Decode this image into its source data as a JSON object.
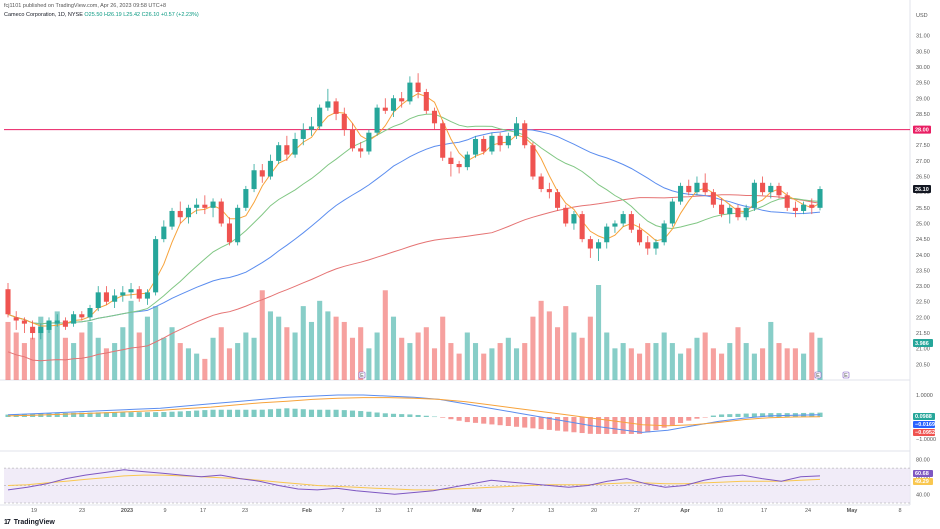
{
  "header": {
    "published": "fcj1101 published on TradingView.com, Apr 26, 2023 09:58 UTC+8"
  },
  "legend": {
    "symbol": "Cameco Corporation, 1D, NYSE",
    "ohlc": "O25.50 H26.19 L25.42 C26.10 +0.57 (+2.23%)"
  },
  "footer": {
    "brand": "TradingView",
    "logo": "17"
  },
  "colors": {
    "up": "#26a69a",
    "down": "#ef5350",
    "ma_short": "#f7a33b",
    "ma_mid": "#81c784",
    "ma_blue": "#5b8def",
    "ma_red": "#e57373",
    "hline": "#e91e63",
    "rsi_band": "#ede7f6"
  },
  "chart_data": {
    "type": "candlestick",
    "currency": "USD",
    "last_close": "26.10",
    "hline_value": 28.0,
    "hline_label": "28.00",
    "ylim": [
      20.0,
      31.5
    ],
    "yticks": [
      "31.00",
      "30.50",
      "30.00",
      "29.50",
      "29.00",
      "28.50",
      "28.00",
      "27.50",
      "27.00",
      "26.50",
      "26.00",
      "25.50",
      "25.00",
      "24.50",
      "24.00",
      "23.50",
      "23.00",
      "22.50",
      "22.00",
      "21.50",
      "21.00",
      "20.50"
    ],
    "volume_label": "3.986",
    "xticks": [
      "19",
      "23",
      "2023",
      "9",
      "17",
      "23",
      "Feb",
      "7",
      "13",
      "17",
      "Mar",
      "7",
      "13",
      "20",
      "27",
      "Apr",
      "10",
      "17",
      "24",
      "May",
      "8"
    ],
    "events": [
      "E",
      "E",
      "E"
    ],
    "candles": [
      {
        "o": 22.9,
        "h": 23.1,
        "l": 22.0,
        "c": 22.1
      },
      {
        "o": 22.0,
        "h": 22.2,
        "l": 21.6,
        "c": 21.9
      },
      {
        "o": 21.9,
        "h": 22.0,
        "l": 21.5,
        "c": 21.8
      },
      {
        "o": 21.7,
        "h": 21.9,
        "l": 21.3,
        "c": 21.5
      },
      {
        "o": 21.5,
        "h": 21.8,
        "l": 21.3,
        "c": 21.7
      },
      {
        "o": 21.6,
        "h": 22.0,
        "l": 21.5,
        "c": 21.9
      },
      {
        "o": 21.8,
        "h": 22.1,
        "l": 21.7,
        "c": 21.9
      },
      {
        "o": 21.9,
        "h": 22.0,
        "l": 21.6,
        "c": 21.7
      },
      {
        "o": 21.8,
        "h": 22.2,
        "l": 21.7,
        "c": 22.1
      },
      {
        "o": 22.1,
        "h": 22.2,
        "l": 21.9,
        "c": 22.0
      },
      {
        "o": 22.0,
        "h": 22.4,
        "l": 21.9,
        "c": 22.3
      },
      {
        "o": 22.3,
        "h": 23.0,
        "l": 22.2,
        "c": 22.8
      },
      {
        "o": 22.8,
        "h": 23.0,
        "l": 22.4,
        "c": 22.5
      },
      {
        "o": 22.5,
        "h": 22.9,
        "l": 22.3,
        "c": 22.7
      },
      {
        "o": 22.7,
        "h": 23.0,
        "l": 22.5,
        "c": 22.8
      },
      {
        "o": 22.8,
        "h": 23.1,
        "l": 22.6,
        "c": 22.9
      },
      {
        "o": 22.9,
        "h": 23.0,
        "l": 22.5,
        "c": 22.6
      },
      {
        "o": 22.6,
        "h": 22.9,
        "l": 22.4,
        "c": 22.8
      },
      {
        "o": 22.8,
        "h": 24.6,
        "l": 22.7,
        "c": 24.5
      },
      {
        "o": 24.5,
        "h": 25.1,
        "l": 24.4,
        "c": 24.9
      },
      {
        "o": 24.9,
        "h": 25.5,
        "l": 24.8,
        "c": 25.4
      },
      {
        "o": 25.4,
        "h": 25.7,
        "l": 25.0,
        "c": 25.2
      },
      {
        "o": 25.2,
        "h": 25.6,
        "l": 25.0,
        "c": 25.5
      },
      {
        "o": 25.5,
        "h": 25.8,
        "l": 25.3,
        "c": 25.6
      },
      {
        "o": 25.6,
        "h": 25.9,
        "l": 25.3,
        "c": 25.5
      },
      {
        "o": 25.5,
        "h": 25.8,
        "l": 25.2,
        "c": 25.7
      },
      {
        "o": 25.7,
        "h": 25.8,
        "l": 24.9,
        "c": 25.0
      },
      {
        "o": 25.0,
        "h": 25.2,
        "l": 24.3,
        "c": 24.4
      },
      {
        "o": 24.4,
        "h": 25.6,
        "l": 24.3,
        "c": 25.5
      },
      {
        "o": 25.5,
        "h": 26.2,
        "l": 25.4,
        "c": 26.1
      },
      {
        "o": 26.1,
        "h": 26.9,
        "l": 26.0,
        "c": 26.7
      },
      {
        "o": 26.7,
        "h": 26.9,
        "l": 26.3,
        "c": 26.5
      },
      {
        "o": 26.5,
        "h": 27.2,
        "l": 26.4,
        "c": 27.0
      },
      {
        "o": 27.0,
        "h": 27.6,
        "l": 26.9,
        "c": 27.5
      },
      {
        "o": 27.5,
        "h": 27.8,
        "l": 27.0,
        "c": 27.2
      },
      {
        "o": 27.2,
        "h": 27.9,
        "l": 27.1,
        "c": 27.7
      },
      {
        "o": 27.7,
        "h": 28.2,
        "l": 27.5,
        "c": 28.0
      },
      {
        "o": 28.0,
        "h": 28.4,
        "l": 27.8,
        "c": 28.1
      },
      {
        "o": 28.1,
        "h": 28.8,
        "l": 28.0,
        "c": 28.7
      },
      {
        "o": 28.7,
        "h": 29.3,
        "l": 28.6,
        "c": 28.9
      },
      {
        "o": 28.9,
        "h": 29.0,
        "l": 28.3,
        "c": 28.5
      },
      {
        "o": 28.5,
        "h": 28.7,
        "l": 27.8,
        "c": 28.0
      },
      {
        "o": 28.0,
        "h": 28.2,
        "l": 27.3,
        "c": 27.4
      },
      {
        "o": 27.4,
        "h": 27.6,
        "l": 27.1,
        "c": 27.3
      },
      {
        "o": 27.3,
        "h": 28.0,
        "l": 27.2,
        "c": 27.9
      },
      {
        "o": 27.9,
        "h": 28.8,
        "l": 27.8,
        "c": 28.7
      },
      {
        "o": 28.7,
        "h": 29.0,
        "l": 28.5,
        "c": 28.6
      },
      {
        "o": 28.6,
        "h": 29.1,
        "l": 28.4,
        "c": 29.0
      },
      {
        "o": 29.0,
        "h": 29.2,
        "l": 28.7,
        "c": 28.9
      },
      {
        "o": 28.9,
        "h": 29.7,
        "l": 28.8,
        "c": 29.5
      },
      {
        "o": 29.5,
        "h": 29.8,
        "l": 29.0,
        "c": 29.2
      },
      {
        "o": 29.2,
        "h": 29.3,
        "l": 28.5,
        "c": 28.6
      },
      {
        "o": 28.6,
        "h": 28.7,
        "l": 28.0,
        "c": 28.2
      },
      {
        "o": 28.2,
        "h": 28.3,
        "l": 27.0,
        "c": 27.1
      },
      {
        "o": 27.1,
        "h": 27.3,
        "l": 26.5,
        "c": 26.9
      },
      {
        "o": 26.9,
        "h": 27.0,
        "l": 26.6,
        "c": 26.8
      },
      {
        "o": 26.8,
        "h": 27.3,
        "l": 26.7,
        "c": 27.2
      },
      {
        "o": 27.2,
        "h": 27.8,
        "l": 27.1,
        "c": 27.7
      },
      {
        "o": 27.7,
        "h": 27.8,
        "l": 27.2,
        "c": 27.3
      },
      {
        "o": 27.3,
        "h": 27.9,
        "l": 27.2,
        "c": 27.8
      },
      {
        "o": 27.8,
        "h": 27.9,
        "l": 27.3,
        "c": 27.5
      },
      {
        "o": 27.5,
        "h": 27.9,
        "l": 27.4,
        "c": 27.8
      },
      {
        "o": 27.8,
        "h": 28.4,
        "l": 27.7,
        "c": 28.2
      },
      {
        "o": 28.2,
        "h": 28.3,
        "l": 27.4,
        "c": 27.5
      },
      {
        "o": 27.5,
        "h": 27.6,
        "l": 26.4,
        "c": 26.5
      },
      {
        "o": 26.5,
        "h": 26.6,
        "l": 26.0,
        "c": 26.1
      },
      {
        "o": 26.1,
        "h": 26.3,
        "l": 25.8,
        "c": 26.0
      },
      {
        "o": 26.0,
        "h": 26.1,
        "l": 25.4,
        "c": 25.5
      },
      {
        "o": 25.5,
        "h": 25.6,
        "l": 24.9,
        "c": 25.0
      },
      {
        "o": 25.0,
        "h": 25.4,
        "l": 24.8,
        "c": 25.3
      },
      {
        "o": 25.3,
        "h": 25.4,
        "l": 24.4,
        "c": 24.5
      },
      {
        "o": 24.5,
        "h": 24.6,
        "l": 23.9,
        "c": 24.2
      },
      {
        "o": 24.2,
        "h": 24.5,
        "l": 23.8,
        "c": 24.4
      },
      {
        "o": 24.4,
        "h": 25.0,
        "l": 24.2,
        "c": 24.9
      },
      {
        "o": 24.9,
        "h": 25.1,
        "l": 24.7,
        "c": 25.0
      },
      {
        "o": 25.0,
        "h": 25.4,
        "l": 24.9,
        "c": 25.3
      },
      {
        "o": 25.3,
        "h": 25.4,
        "l": 24.7,
        "c": 24.8
      },
      {
        "o": 24.8,
        "h": 25.0,
        "l": 24.3,
        "c": 24.4
      },
      {
        "o": 24.4,
        "h": 24.6,
        "l": 24.0,
        "c": 24.2
      },
      {
        "o": 24.2,
        "h": 24.5,
        "l": 24.0,
        "c": 24.4
      },
      {
        "o": 24.4,
        "h": 25.1,
        "l": 24.3,
        "c": 25.0
      },
      {
        "o": 25.0,
        "h": 25.8,
        "l": 24.9,
        "c": 25.7
      },
      {
        "o": 25.7,
        "h": 26.3,
        "l": 25.6,
        "c": 26.2
      },
      {
        "o": 26.2,
        "h": 26.4,
        "l": 25.9,
        "c": 26.0
      },
      {
        "o": 26.0,
        "h": 26.5,
        "l": 25.9,
        "c": 26.3
      },
      {
        "o": 26.3,
        "h": 26.6,
        "l": 25.9,
        "c": 26.0
      },
      {
        "o": 26.0,
        "h": 26.1,
        "l": 25.5,
        "c": 25.6
      },
      {
        "o": 25.6,
        "h": 25.8,
        "l": 25.2,
        "c": 25.3
      },
      {
        "o": 25.3,
        "h": 25.6,
        "l": 25.0,
        "c": 25.5
      },
      {
        "o": 25.5,
        "h": 25.6,
        "l": 25.1,
        "c": 25.2
      },
      {
        "o": 25.2,
        "h": 25.6,
        "l": 25.1,
        "c": 25.5
      },
      {
        "o": 25.5,
        "h": 26.4,
        "l": 25.4,
        "c": 26.3
      },
      {
        "o": 26.3,
        "h": 26.5,
        "l": 25.9,
        "c": 26.0
      },
      {
        "o": 26.0,
        "h": 26.3,
        "l": 25.8,
        "c": 26.2
      },
      {
        "o": 26.2,
        "h": 26.3,
        "l": 25.8,
        "c": 25.9
      },
      {
        "o": 25.9,
        "h": 26.0,
        "l": 25.4,
        "c": 25.5
      },
      {
        "o": 25.5,
        "h": 25.7,
        "l": 25.2,
        "c": 25.4
      },
      {
        "o": 25.4,
        "h": 25.7,
        "l": 25.3,
        "c": 25.6
      },
      {
        "o": 25.6,
        "h": 25.8,
        "l": 25.3,
        "c": 25.5
      },
      {
        "o": 25.5,
        "h": 26.19,
        "l": 25.42,
        "c": 26.1
      }
    ],
    "volumes": [
      21.5,
      21.3,
      21.1,
      21.2,
      21.6,
      21.4,
      21.7,
      21.2,
      21.1,
      21.3,
      21.5,
      21.2,
      21.0,
      21.1,
      21.4,
      21.9,
      21.3,
      21.6,
      21.8,
      21.2,
      21.4,
      21.1,
      21.0,
      20.9,
      20.8,
      21.2,
      21.4,
      21.0,
      21.1,
      21.3,
      21.2,
      22.1,
      21.7,
      21.6,
      21.4,
      21.3,
      21.8,
      21.5,
      21.9,
      21.7,
      21.6,
      21.5,
      21.2,
      21.4,
      21.0,
      21.3,
      22.1,
      21.6,
      21.2,
      21.1,
      21.3,
      21.4,
      21.0,
      21.6,
      21.1,
      20.9,
      21.3,
      21.1,
      20.9,
      21.0,
      21.1,
      21.2,
      21.0,
      21.1,
      21.6,
      21.9,
      21.7,
      21.4,
      21.8,
      21.3,
      21.2,
      21.6,
      22.2,
      21.3,
      21.0,
      21.1,
      21.0,
      20.9,
      21.1,
      21.1,
      21.3,
      21.1,
      20.9,
      21.0,
      21.2,
      21.3,
      21.0,
      20.9,
      21.1,
      21.4,
      21.1,
      20.9,
      21.0,
      21.5,
      21.1,
      21.0,
      21.0,
      20.9,
      21.3,
      21.2,
      21.4
    ],
    "macd": {
      "yticks": [
        "1.0000",
        "0.0000",
        "−1.0000"
      ],
      "labels": [
        "0.0988",
        "−0.0169",
        "−0.0952"
      ],
      "macd_line": [
        0.1,
        0.15,
        0.2,
        0.25,
        0.3,
        0.35,
        0.4,
        0.5,
        0.6,
        0.7,
        0.8,
        0.9,
        0.95,
        1.0,
        1.0,
        0.95,
        0.9,
        0.8,
        0.6,
        0.4,
        0.2,
        0.0,
        -0.2,
        -0.4,
        -0.55,
        -0.7,
        -0.6,
        -0.4,
        -0.2,
        -0.05,
        0.05,
        0.08,
        0.1
      ],
      "signal_line": [
        0.05,
        0.08,
        0.12,
        0.16,
        0.2,
        0.25,
        0.3,
        0.38,
        0.45,
        0.55,
        0.65,
        0.72,
        0.8,
        0.85,
        0.88,
        0.88,
        0.85,
        0.8,
        0.7,
        0.55,
        0.4,
        0.25,
        0.1,
        -0.05,
        -0.2,
        -0.35,
        -0.4,
        -0.35,
        -0.25,
        -0.12,
        -0.03,
        0.0,
        0.01
      ]
    },
    "rsi": {
      "yticks": [
        "80.00",
        "60.00",
        "40.00"
      ],
      "labels": [
        "60.68",
        "49.29"
      ],
      "rsi_line": [
        45,
        48,
        52,
        58,
        62,
        65,
        68,
        66,
        64,
        62,
        60,
        62,
        58,
        55,
        50,
        46,
        45,
        47,
        44,
        42,
        40,
        42,
        44,
        48,
        52,
        56,
        54,
        52,
        50,
        48,
        50,
        55,
        58,
        52,
        48,
        50,
        56,
        60,
        62,
        58,
        55,
        60,
        61
      ],
      "ma_line": [
        50,
        51,
        53,
        55,
        57,
        59,
        61,
        62,
        62,
        61,
        60,
        59,
        58,
        56,
        54,
        52,
        50,
        49,
        48,
        47,
        46,
        45,
        45,
        46,
        47,
        48,
        49,
        50,
        51,
        51,
        51,
        52,
        53,
        53,
        52,
        52,
        53,
        54,
        55,
        55,
        55,
        56,
        57
      ]
    }
  }
}
